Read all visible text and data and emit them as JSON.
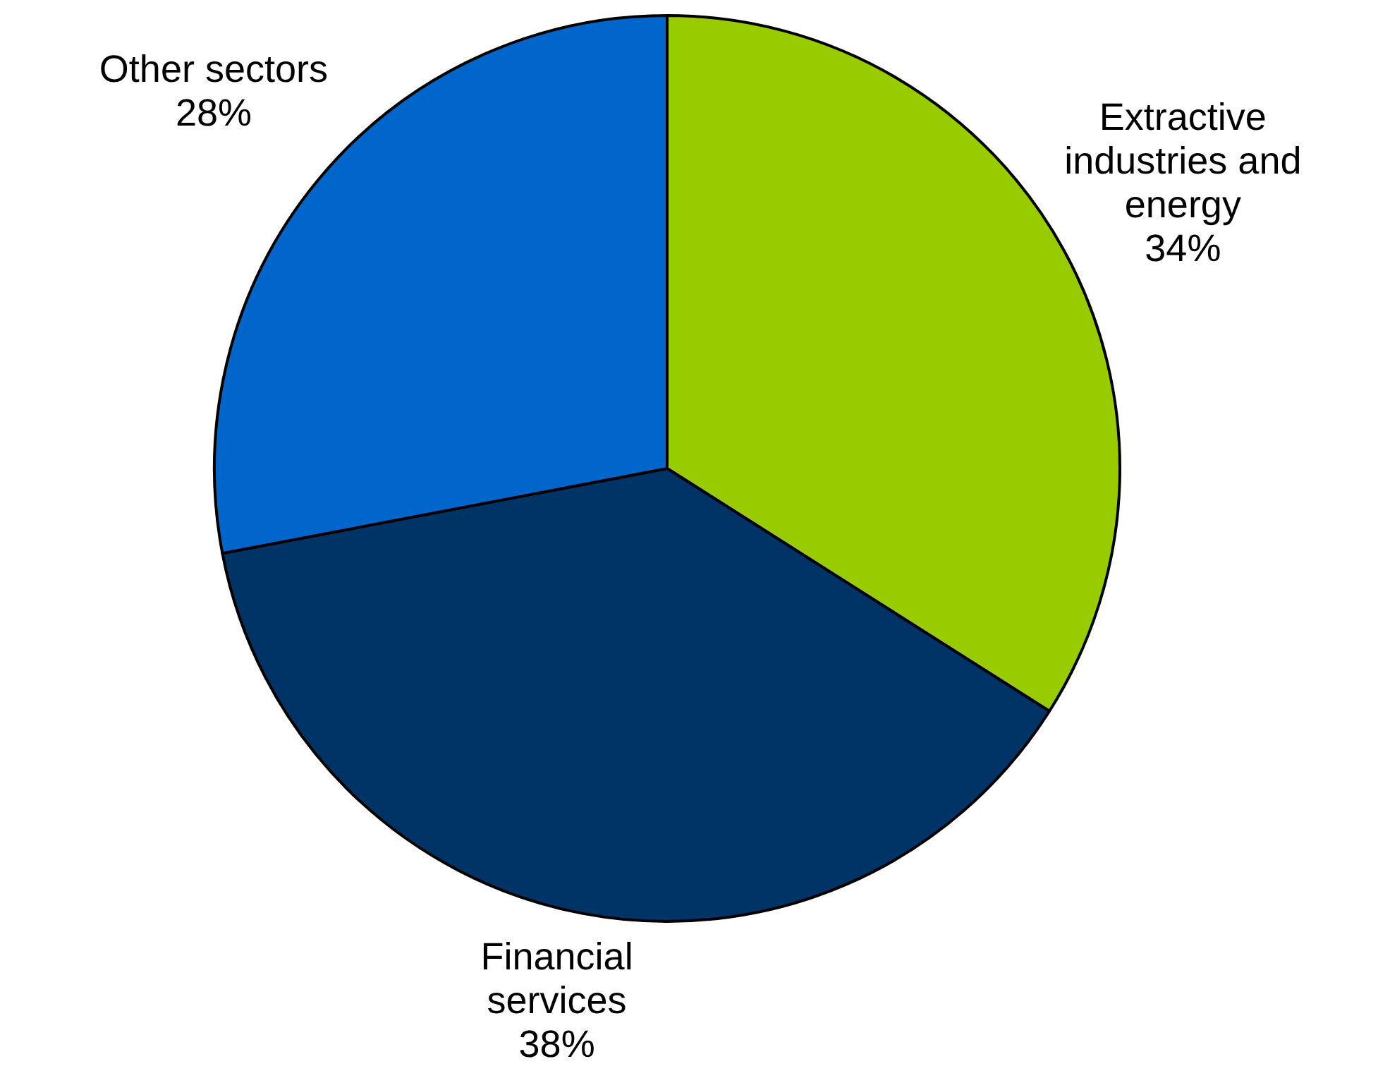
{
  "chart_data": {
    "type": "pie",
    "categories": [
      "Extractive industries and energy",
      "Financial services",
      "Other sectors"
    ],
    "values": [
      34,
      38,
      28
    ],
    "colors": [
      "#99cc00",
      "#003366",
      "#0066cc"
    ],
    "value_labels": [
      "34%",
      "38%",
      "28%"
    ]
  }
}
